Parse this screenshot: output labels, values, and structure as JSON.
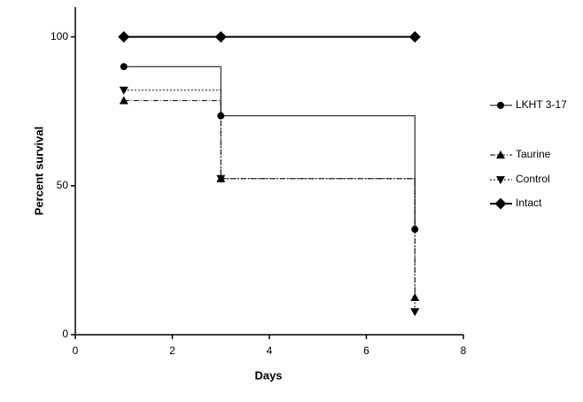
{
  "chart_data": {
    "type": "step",
    "x_label": "Days",
    "y_label": "Percent survival",
    "xlim": [
      0,
      8
    ],
    "xticks": [
      0,
      2,
      4,
      6,
      8
    ],
    "ylim": [
      0,
      110
    ],
    "yticks": [
      0,
      50,
      100
    ],
    "series": [
      {
        "name": "LKHT 3-17",
        "color": "#000000",
        "marker": "circle",
        "dash": "none",
        "width": 1,
        "x": [
          1,
          3,
          7
        ],
        "values": [
          90,
          73.5,
          35.4
        ]
      },
      {
        "name": "Taurine",
        "color": "#000000",
        "marker": "triangle-up",
        "dash": "6 2 1 2",
        "width": 1,
        "x": [
          1,
          3,
          7
        ],
        "values": [
          78.6,
          52.4,
          12.5
        ]
      },
      {
        "name": "Control",
        "color": "#000000",
        "marker": "triangle-down",
        "dash": "2 2",
        "width": 1,
        "x": [
          1,
          3,
          7
        ],
        "values": [
          82.1,
          52.4,
          7.7
        ]
      },
      {
        "name": "Intact",
        "color": "#000000",
        "marker": "diamond",
        "dash": "none",
        "width": 2,
        "x": [
          1,
          3,
          7
        ],
        "values": [
          100,
          100,
          100
        ]
      }
    ]
  }
}
